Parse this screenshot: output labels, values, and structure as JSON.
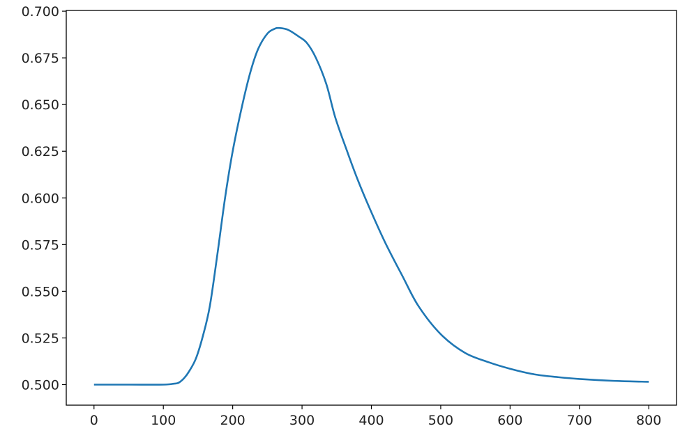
{
  "chart_data": {
    "type": "line",
    "title": "",
    "xlabel": "",
    "ylabel": "",
    "xlim": [
      -40,
      840
    ],
    "ylim": [
      0.489,
      0.7004
    ],
    "grid": false,
    "x_ticks": [
      "0",
      "100",
      "200",
      "300",
      "400",
      "500",
      "600",
      "700",
      "800"
    ],
    "y_ticks": [
      "0.500",
      "0.525",
      "0.550",
      "0.575",
      "0.600",
      "0.625",
      "0.650",
      "0.675",
      "0.700"
    ],
    "series": [
      {
        "color": "#1f77b4",
        "x": [
          0,
          50,
          100,
          115,
          122,
          130,
          137,
          147,
          157,
          167,
          178,
          189,
          200,
          214,
          226,
          237,
          250,
          260,
          267,
          280,
          295,
          307,
          320,
          335,
          348,
          365,
          380,
          398,
          420,
          445,
          468,
          500,
          535,
          569,
          600,
          635,
          669,
          700,
          750,
          800
        ],
        "y": [
          0.5,
          0.5,
          0.5,
          0.5005,
          0.501,
          0.5035,
          0.507,
          0.514,
          0.526,
          0.542,
          0.57,
          0.6,
          0.625,
          0.65,
          0.668,
          0.68,
          0.688,
          0.6905,
          0.691,
          0.69,
          0.6865,
          0.683,
          0.675,
          0.661,
          0.643,
          0.625,
          0.61,
          0.594,
          0.576,
          0.558,
          0.542,
          0.527,
          0.517,
          0.512,
          0.5085,
          0.5055,
          0.504,
          0.503,
          0.502,
          0.5015
        ]
      }
    ]
  }
}
